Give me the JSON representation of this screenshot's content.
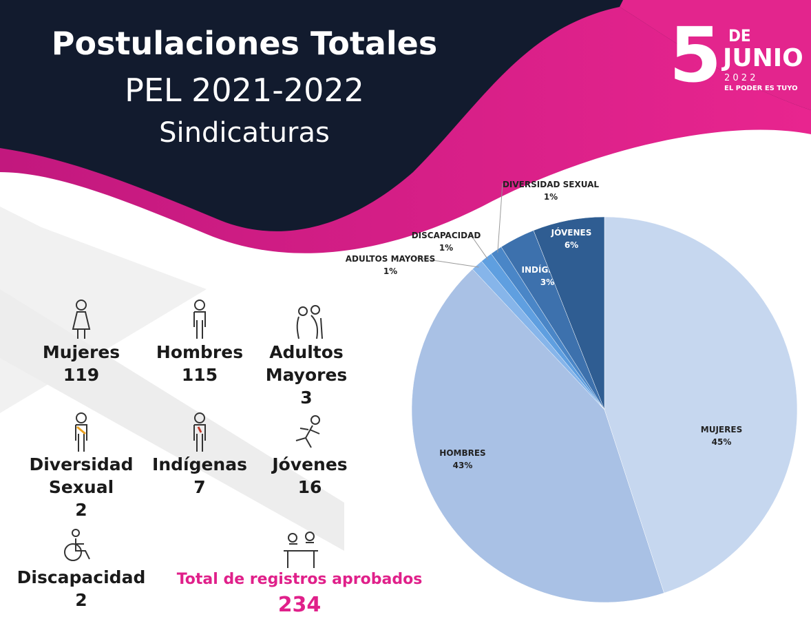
{
  "header": {
    "title": "Postulaciones Totales",
    "subtitle": "PEL 2021-2022",
    "section": "Sindicaturas"
  },
  "logo": {
    "number": "5",
    "de": "DE",
    "month": "JUNIO",
    "year": "2 0 2 2",
    "slogan": "EL PODER ES TUYO"
  },
  "stats": [
    {
      "label": "Mujeres",
      "value": 119
    },
    {
      "label": "Hombres",
      "value": 115
    },
    {
      "label": "Adultos Mayores",
      "value": 3
    },
    {
      "label": "Diversidad Sexual",
      "value": 2
    },
    {
      "label": "Indígenas",
      "value": 7
    },
    {
      "label": "Jóvenes",
      "value": 16
    },
    {
      "label": "Discapacidad",
      "value": 2
    }
  ],
  "total": {
    "label": "Total de registros aprobados",
    "value": 234
  },
  "chart_data": {
    "type": "pie",
    "categories": [
      "MUJERES",
      "HOMBRES",
      "ADULTOS MAYORES",
      "DISCAPACIDAD",
      "DIVERSIDAD SEXUAL",
      "INDÍGENAS",
      "JÓVENES"
    ],
    "values": [
      45,
      43,
      1,
      1,
      1,
      3,
      6
    ],
    "value_labels": [
      "45%",
      "43%",
      "1%",
      "1%",
      "1%",
      "3%",
      "6%"
    ],
    "colors": [
      "#c6d7ef",
      "#a9c1e5",
      "#86b5ea",
      "#5f9fe0",
      "#4a86c7",
      "#3d71ad",
      "#2f5d92"
    ]
  }
}
